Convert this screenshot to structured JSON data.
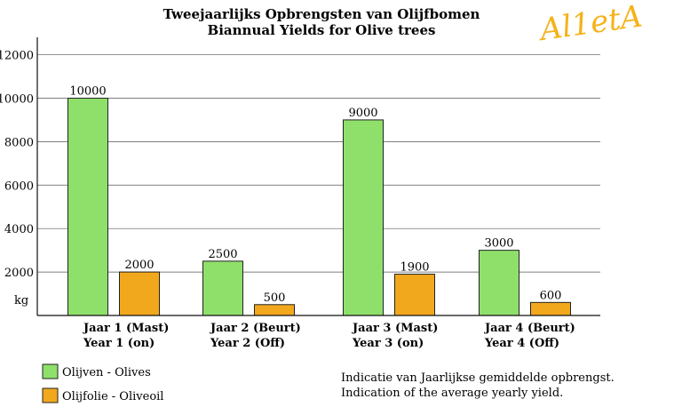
{
  "chart_data": {
    "type": "bar",
    "title": [
      "Tweejaarlijks Opbrengsten van Olijfbomen",
      "Biannual Yields for Olive trees"
    ],
    "ylabel": "kg",
    "ylim": [
      0,
      12800
    ],
    "yticks": [
      2000,
      4000,
      6000,
      8000,
      10000,
      12000
    ],
    "grid": true,
    "categories": [
      [
        "Jaar 1 (Mast)",
        "Year 1 (on)"
      ],
      [
        "Jaar 2 (Beurt)",
        "Year 2 (Off)"
      ],
      [
        "Jaar 3 (Mast)",
        "Year 3 (on)"
      ],
      [
        "Jaar 4 (Beurt)",
        "Year 4 (Off)"
      ]
    ],
    "series": [
      {
        "name": "Olijven - Olives",
        "color": "#8fe06b",
        "values": [
          10000,
          2500,
          9000,
          3000
        ]
      },
      {
        "name": "Olijfolie - Oliveoil",
        "color": "#f2a81d",
        "values": [
          2000,
          500,
          1900,
          600
        ]
      }
    ],
    "legend_position": "bottom-left"
  },
  "note": [
    "Indicatie van Jaarlijkse gemiddelde opbrengst.",
    "Indication of the average yearly yield."
  ],
  "logo_text": "Al1etA"
}
